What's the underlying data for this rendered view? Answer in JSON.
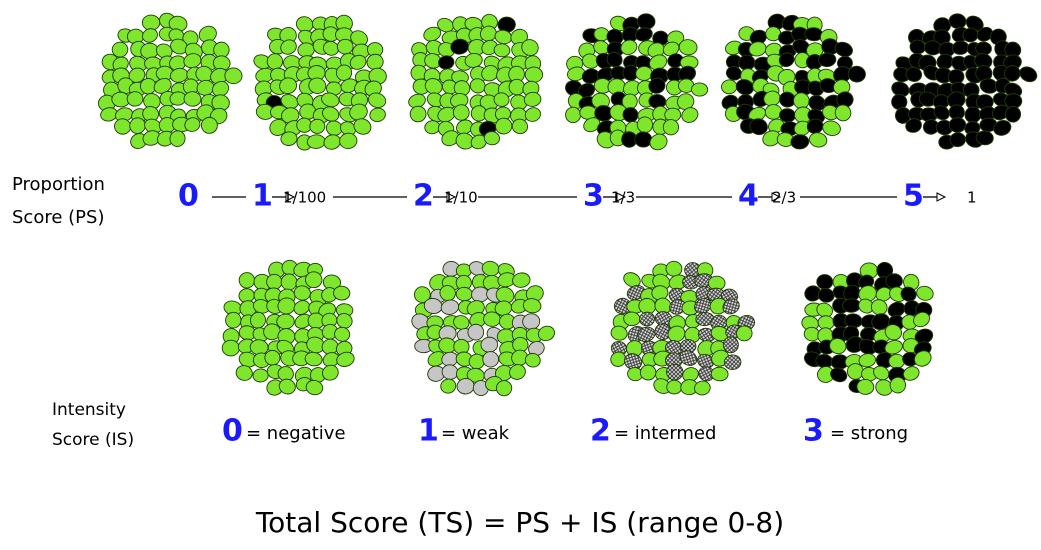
{
  "proportion": {
    "label_line1": "Proportion",
    "label_line2": "Score (PS)",
    "scores": [
      {
        "score": "0"
      },
      {
        "score": "1",
        "fraction": "1/100"
      },
      {
        "score": "2",
        "fraction": "1/10"
      },
      {
        "score": "3",
        "fraction": "1/3"
      },
      {
        "score": "4",
        "fraction": "2/3"
      },
      {
        "score": "5",
        "fraction": "1"
      }
    ]
  },
  "intensity": {
    "label_line1": "Intensity",
    "label_line2": "Score (IS)",
    "scores": [
      {
        "score": "0",
        "label": "= negative"
      },
      {
        "score": "1",
        "label": "= weak"
      },
      {
        "score": "2",
        "label": "= intermed"
      },
      {
        "score": "3",
        "label": "= strong"
      }
    ]
  },
  "total": "Total Score (TS) = PS + IS (range 0-8)"
}
